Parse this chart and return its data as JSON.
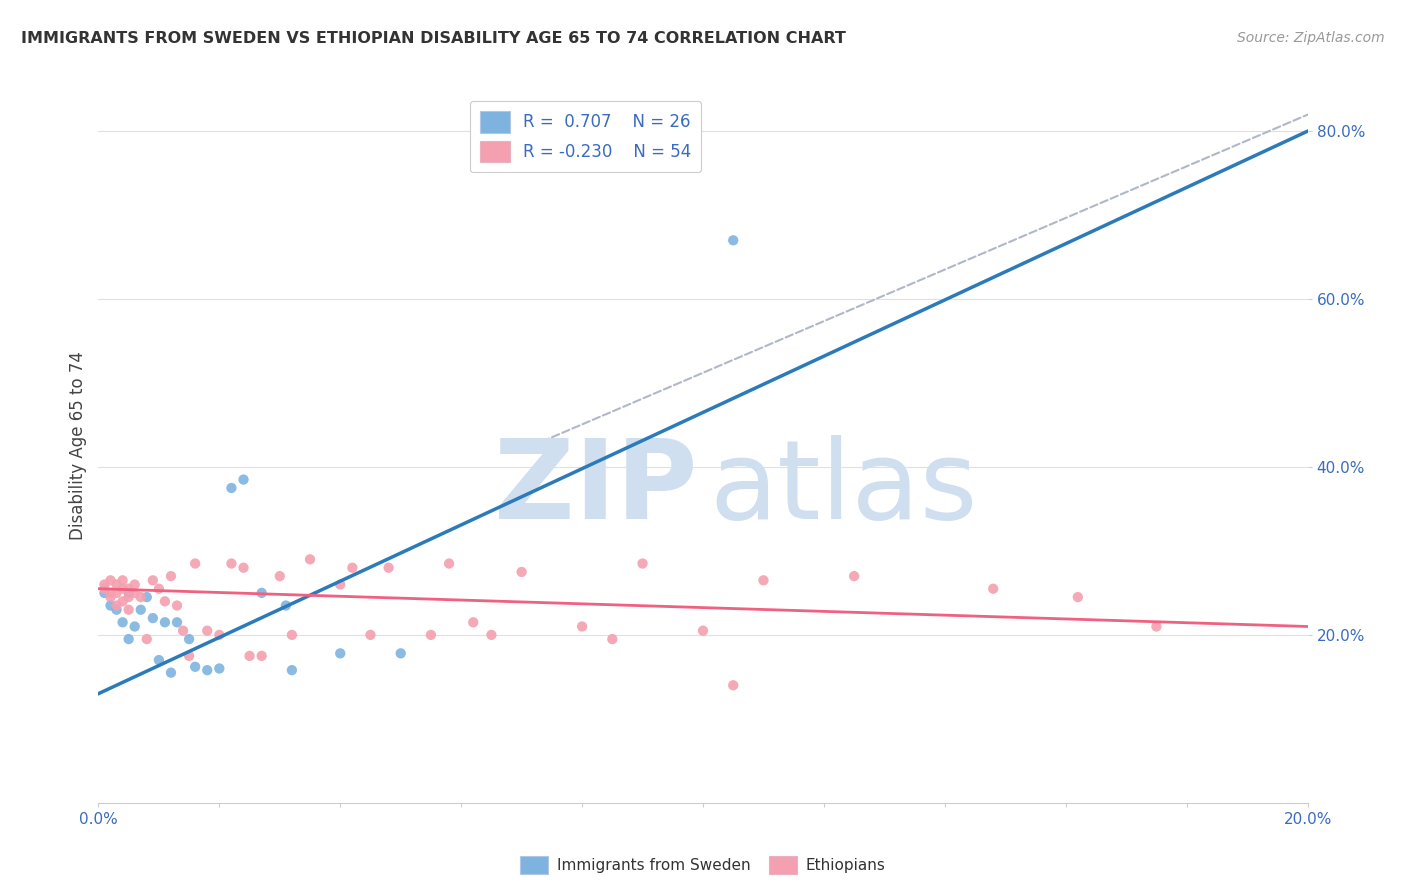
{
  "title": "IMMIGRANTS FROM SWEDEN VS ETHIOPIAN DISABILITY AGE 65 TO 74 CORRELATION CHART",
  "source": "Source: ZipAtlas.com",
  "ylabel": "Disability Age 65 to 74",
  "xlim": [
    0.0,
    0.2
  ],
  "ylim": [
    0.0,
    0.85
  ],
  "y_ticks": [
    0.2,
    0.4,
    0.6,
    0.8
  ],
  "y_tick_labels": [
    "20.0%",
    "40.0%",
    "60.0%",
    "80.0%"
  ],
  "x_ticks": [
    0.0,
    0.02,
    0.04,
    0.06,
    0.08,
    0.1,
    0.12,
    0.14,
    0.16,
    0.18,
    0.2
  ],
  "x_tick_labels": [
    "0.0%",
    "",
    "",
    "",
    "",
    "",
    "",
    "",
    "",
    "",
    "20.0%"
  ],
  "sweden_color": "#7eb3e0",
  "ethiopia_color": "#f4a0b0",
  "sweden_line_color": "#2b7bba",
  "ethiopia_line_color": "#f06080",
  "dashed_line_color": "#b0b8c8",
  "watermark_color": "#d0dff0",
  "sweden_scatter_x": [
    0.001,
    0.002,
    0.003,
    0.004,
    0.005,
    0.005,
    0.006,
    0.007,
    0.008,
    0.009,
    0.01,
    0.011,
    0.012,
    0.013,
    0.015,
    0.016,
    0.018,
    0.02,
    0.022,
    0.024,
    0.027,
    0.031,
    0.032,
    0.04,
    0.05,
    0.105
  ],
  "sweden_scatter_y": [
    0.25,
    0.235,
    0.23,
    0.215,
    0.25,
    0.195,
    0.21,
    0.23,
    0.245,
    0.22,
    0.17,
    0.215,
    0.155,
    0.215,
    0.195,
    0.162,
    0.158,
    0.16,
    0.375,
    0.385,
    0.25,
    0.235,
    0.158,
    0.178,
    0.178,
    0.67
  ],
  "ethiopia_scatter_x": [
    0.001,
    0.001,
    0.002,
    0.002,
    0.002,
    0.003,
    0.003,
    0.003,
    0.004,
    0.004,
    0.004,
    0.005,
    0.005,
    0.005,
    0.006,
    0.006,
    0.007,
    0.008,
    0.009,
    0.01,
    0.011,
    0.012,
    0.013,
    0.014,
    0.015,
    0.016,
    0.018,
    0.02,
    0.022,
    0.024,
    0.025,
    0.027,
    0.03,
    0.032,
    0.035,
    0.04,
    0.042,
    0.045,
    0.048,
    0.055,
    0.058,
    0.062,
    0.065,
    0.07,
    0.08,
    0.085,
    0.09,
    0.1,
    0.105,
    0.11,
    0.125,
    0.148,
    0.162,
    0.175
  ],
  "ethiopia_scatter_y": [
    0.255,
    0.26,
    0.245,
    0.25,
    0.265,
    0.235,
    0.25,
    0.26,
    0.24,
    0.255,
    0.265,
    0.23,
    0.245,
    0.255,
    0.25,
    0.26,
    0.245,
    0.195,
    0.265,
    0.255,
    0.24,
    0.27,
    0.235,
    0.205,
    0.175,
    0.285,
    0.205,
    0.2,
    0.285,
    0.28,
    0.175,
    0.175,
    0.27,
    0.2,
    0.29,
    0.26,
    0.28,
    0.2,
    0.28,
    0.2,
    0.285,
    0.215,
    0.2,
    0.275,
    0.21,
    0.195,
    0.285,
    0.205,
    0.14,
    0.265,
    0.27,
    0.255,
    0.245,
    0.21
  ],
  "sweden_trendline_x": [
    0.0,
    0.2
  ],
  "sweden_trendline_y": [
    0.13,
    0.8
  ],
  "ethiopia_trendline_x": [
    0.0,
    0.2
  ],
  "ethiopia_trendline_y": [
    0.255,
    0.21
  ],
  "dashed_line_x": [
    0.07,
    0.205
  ],
  "dashed_line_y": [
    0.42,
    0.835
  ],
  "background_color": "#ffffff",
  "grid_color": "#e8e8e8",
  "grid_color_h": "#e0e0e0"
}
